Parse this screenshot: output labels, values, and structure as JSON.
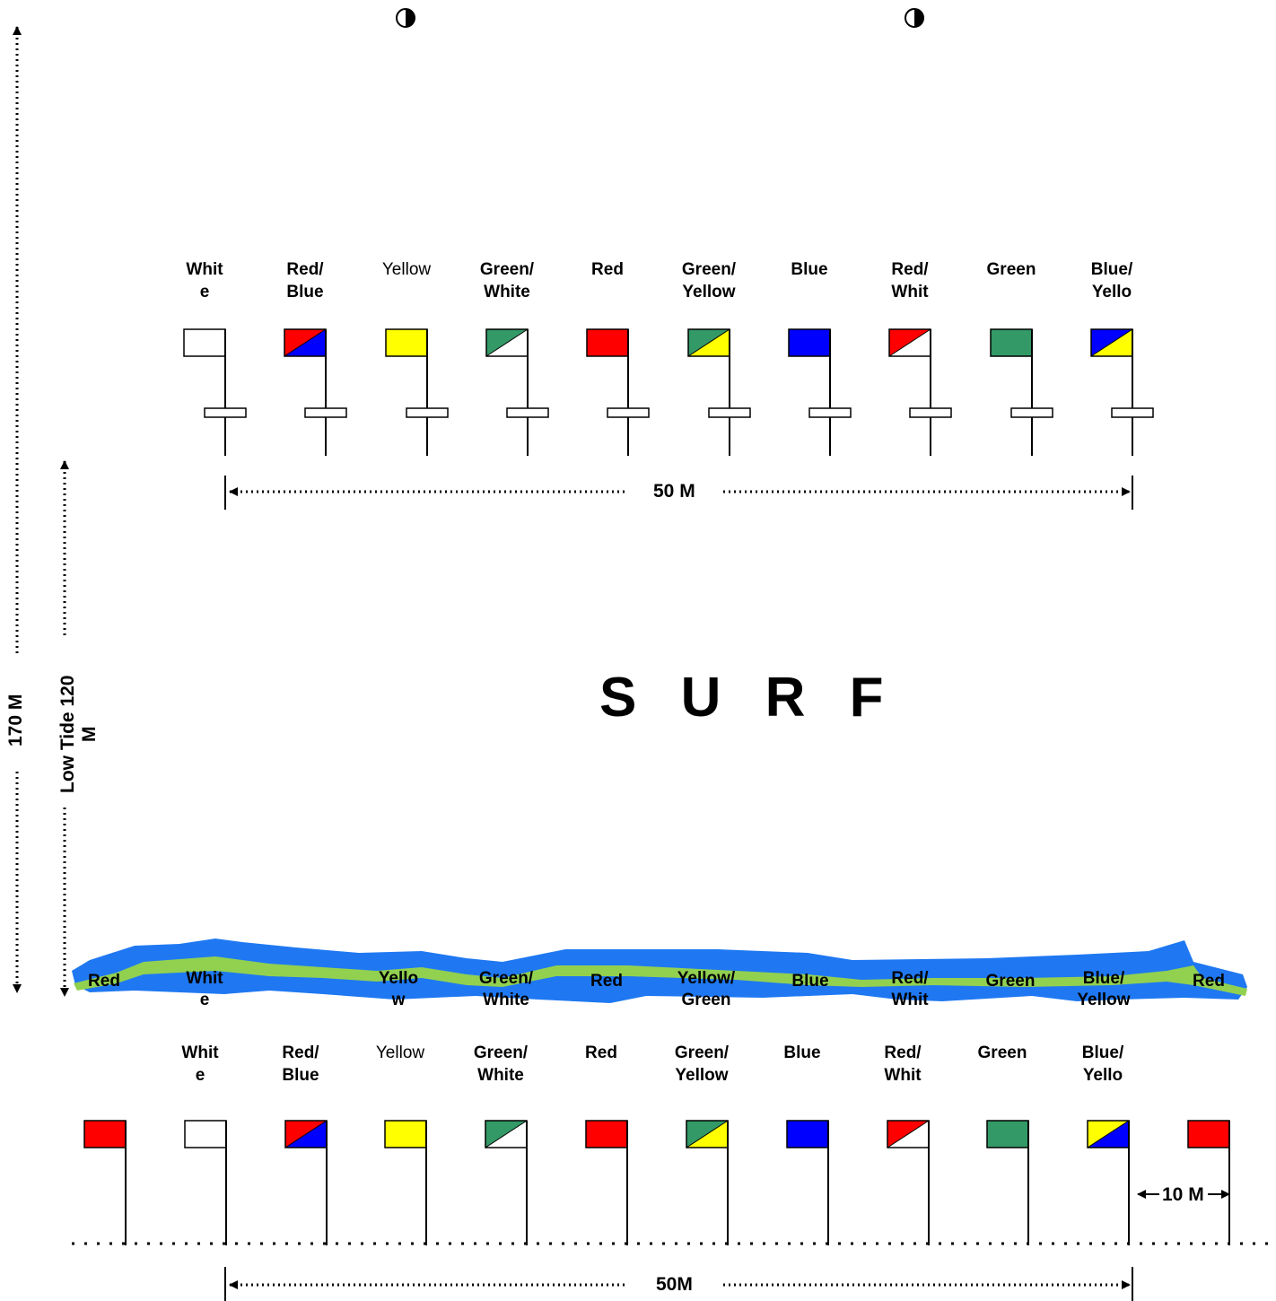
{
  "colors": {
    "Red": "#ff0000",
    "Blue": "#0000ff",
    "Yellow": "#ffff00",
    "Green": "#339966",
    "White": "#ffffff",
    "Black": "#000000",
    "Water": "#1e7bf0",
    "Sand": "#92d050"
  },
  "top_flags": [
    {
      "l1": "Whit",
      "l2": "e",
      "weight": "bold",
      "c": [
        "White"
      ]
    },
    {
      "l1": "Red/",
      "l2": "Blue",
      "weight": "bold",
      "c": [
        "Red",
        "Blue"
      ]
    },
    {
      "l1": "Yellow",
      "l2": "",
      "weight": "normal",
      "c": [
        "Yellow"
      ]
    },
    {
      "l1": "Green/",
      "l2": "White",
      "weight": "bold",
      "c": [
        "Green",
        "White"
      ]
    },
    {
      "l1": "Red",
      "l2": "",
      "weight": "bold",
      "c": [
        "Red"
      ]
    },
    {
      "l1": "Green/",
      "l2": "Yellow",
      "weight": "bold",
      "c": [
        "Green",
        "Yellow"
      ]
    },
    {
      "l1": "Blue",
      "l2": "",
      "weight": "bold",
      "c": [
        "Blue"
      ]
    },
    {
      "l1": "Red/",
      "l2": "Whit",
      "weight": "bold",
      "c": [
        "Red",
        "White"
      ]
    },
    {
      "l1": "Green",
      "l2": "",
      "weight": "bold",
      "c": [
        "Green"
      ]
    },
    {
      "l1": "Blue/",
      "l2": "Yello",
      "weight": "bold",
      "c": [
        "Blue",
        "Yellow"
      ]
    }
  ],
  "bottom_flags": [
    {
      "l1": "",
      "l2": "",
      "weight": "bold",
      "c": [
        "Red"
      ]
    },
    {
      "l1": "Whit",
      "l2": "e",
      "weight": "bold",
      "c": [
        "White"
      ]
    },
    {
      "l1": "Red/",
      "l2": "Blue",
      "weight": "bold",
      "c": [
        "Red",
        "Blue"
      ]
    },
    {
      "l1": "Yellow",
      "l2": "",
      "weight": "normal",
      "c": [
        "Yellow"
      ]
    },
    {
      "l1": "Green/",
      "l2": "White",
      "weight": "bold",
      "c": [
        "Green",
        "White"
      ]
    },
    {
      "l1": "Red",
      "l2": "",
      "weight": "bold",
      "c": [
        "Red"
      ]
    },
    {
      "l1": "Green/",
      "l2": "Yellow",
      "weight": "bold",
      "c": [
        "Green",
        "Yellow"
      ]
    },
    {
      "l1": "Blue",
      "l2": "",
      "weight": "bold",
      "c": [
        "Blue"
      ]
    },
    {
      "l1": "Red/",
      "l2": "Whit",
      "weight": "bold",
      "c": [
        "Red",
        "White"
      ]
    },
    {
      "l1": "Green",
      "l2": "",
      "weight": "bold",
      "c": [
        "Green"
      ]
    },
    {
      "l1": "Blue/",
      "l2": "Yello",
      "weight": "bold",
      "c": [
        "Yellow",
        "Blue"
      ]
    },
    {
      "l1": "",
      "l2": "",
      "weight": "bold",
      "c": [
        "Red"
      ]
    }
  ],
  "river_labels": [
    {
      "l1": "Red",
      "l2": ""
    },
    {
      "l1": "Whit",
      "l2": "e"
    },
    {
      "l1": "Yello",
      "l2": "w"
    },
    {
      "l1": "Green/",
      "l2": "White"
    },
    {
      "l1": "Red",
      "l2": ""
    },
    {
      "l1": "Yellow/",
      "l2": "Green"
    },
    {
      "l1": "Blue",
      "l2": ""
    },
    {
      "l1": "Red/",
      "l2": "Whit"
    },
    {
      "l1": "Green",
      "l2": ""
    },
    {
      "l1": "Blue/",
      "l2": "Yellow"
    },
    {
      "l1": "Red",
      "l2": ""
    }
  ],
  "surf_label": "S U R F",
  "dim_top": "50 M",
  "dim_bottom": "50M",
  "dim_small": "10 M",
  "dim_total_line1": "170 M",
  "dim_low_tide_line1": "Low Tide 120",
  "dim_low_tide_line2": "M",
  "icons": [
    "half-moon-icon",
    "half-moon-icon"
  ]
}
